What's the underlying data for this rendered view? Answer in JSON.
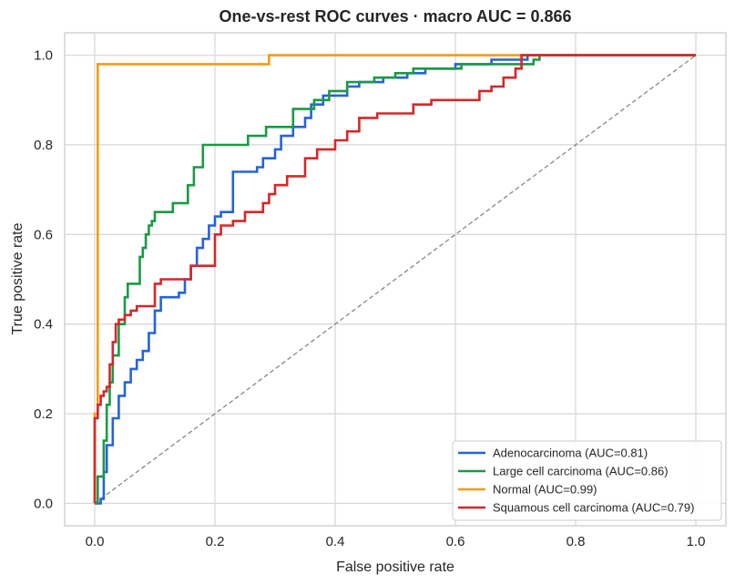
{
  "chart_data": {
    "type": "line",
    "title": "One-vs-rest ROC curves  ·  macro AUC = 0.866",
    "xlabel": "False positive rate",
    "ylabel": "True positive rate",
    "xlim": [
      -0.05,
      1.05
    ],
    "ylim": [
      -0.05,
      1.05
    ],
    "xticks": [
      "0.0",
      "0.2",
      "0.4",
      "0.6",
      "0.8",
      "1.0"
    ],
    "yticks": [
      "0.0",
      "0.2",
      "0.4",
      "0.6",
      "0.8",
      "1.0"
    ],
    "grid": true,
    "legend_position": "lower-right",
    "chance_line": {
      "x": [
        0,
        1
      ],
      "y": [
        0,
        1
      ],
      "color": "#888888",
      "style": "dashed"
    },
    "series": [
      {
        "name": "Adenocarcinoma (AUC=0.81)",
        "color": "#2563d9",
        "x": [
          0,
          0.01,
          0.01,
          0.015,
          0.015,
          0.02,
          0.02,
          0.03,
          0.03,
          0.04,
          0.04,
          0.05,
          0.05,
          0.06,
          0.06,
          0.07,
          0.07,
          0.08,
          0.08,
          0.09,
          0.09,
          0.1,
          0.1,
          0.11,
          0.11,
          0.14,
          0.14,
          0.15,
          0.15,
          0.16,
          0.16,
          0.17,
          0.17,
          0.18,
          0.18,
          0.19,
          0.19,
          0.2,
          0.2,
          0.21,
          0.21,
          0.23,
          0.23,
          0.27,
          0.27,
          0.28,
          0.28,
          0.3,
          0.3,
          0.31,
          0.31,
          0.33,
          0.33,
          0.35,
          0.35,
          0.36,
          0.36,
          0.38,
          0.38,
          0.42,
          0.42,
          0.44,
          0.44,
          0.48,
          0.48,
          0.52,
          0.52,
          0.55,
          0.55,
          0.6,
          0.6,
          0.66,
          0.66,
          0.72,
          0.72,
          1.0
        ],
        "y": [
          0,
          0,
          0.01,
          0.01,
          0.07,
          0.07,
          0.13,
          0.13,
          0.19,
          0.19,
          0.24,
          0.24,
          0.27,
          0.27,
          0.3,
          0.3,
          0.32,
          0.32,
          0.34,
          0.34,
          0.38,
          0.38,
          0.43,
          0.43,
          0.46,
          0.46,
          0.47,
          0.47,
          0.5,
          0.5,
          0.53,
          0.53,
          0.57,
          0.57,
          0.59,
          0.59,
          0.62,
          0.62,
          0.64,
          0.64,
          0.65,
          0.65,
          0.74,
          0.74,
          0.75,
          0.75,
          0.77,
          0.77,
          0.79,
          0.79,
          0.82,
          0.82,
          0.84,
          0.84,
          0.86,
          0.86,
          0.89,
          0.89,
          0.91,
          0.91,
          0.93,
          0.93,
          0.94,
          0.94,
          0.95,
          0.95,
          0.96,
          0.96,
          0.97,
          0.97,
          0.98,
          0.98,
          0.99,
          0.99,
          1.0,
          1.0
        ]
      },
      {
        "name": "Large cell carcinoma (AUC=0.86)",
        "color": "#1a9a45",
        "x": [
          0,
          0.005,
          0.005,
          0.015,
          0.015,
          0.02,
          0.02,
          0.025,
          0.025,
          0.03,
          0.03,
          0.04,
          0.04,
          0.05,
          0.05,
          0.055,
          0.055,
          0.075,
          0.075,
          0.08,
          0.08,
          0.085,
          0.085,
          0.09,
          0.09,
          0.095,
          0.095,
          0.1,
          0.1,
          0.13,
          0.13,
          0.155,
          0.155,
          0.165,
          0.165,
          0.18,
          0.18,
          0.255,
          0.255,
          0.285,
          0.285,
          0.33,
          0.33,
          0.365,
          0.365,
          0.39,
          0.39,
          0.42,
          0.42,
          0.465,
          0.465,
          0.5,
          0.5,
          0.53,
          0.53,
          0.61,
          0.61,
          0.73,
          0.73,
          0.74,
          0.74,
          1.0
        ],
        "y": [
          0,
          0,
          0.06,
          0.06,
          0.14,
          0.14,
          0.22,
          0.22,
          0.27,
          0.27,
          0.33,
          0.33,
          0.4,
          0.4,
          0.46,
          0.46,
          0.49,
          0.49,
          0.55,
          0.55,
          0.57,
          0.57,
          0.6,
          0.6,
          0.62,
          0.62,
          0.63,
          0.63,
          0.65,
          0.65,
          0.67,
          0.67,
          0.71,
          0.71,
          0.75,
          0.75,
          0.8,
          0.8,
          0.82,
          0.82,
          0.84,
          0.84,
          0.88,
          0.88,
          0.9,
          0.9,
          0.92,
          0.92,
          0.94,
          0.94,
          0.95,
          0.95,
          0.96,
          0.96,
          0.97,
          0.97,
          0.98,
          0.98,
          0.99,
          0.99,
          1.0,
          1.0
        ]
      },
      {
        "name": "Normal (AUC=0.99)",
        "color": "#f39c12",
        "x": [
          0,
          0.0,
          0.005,
          0.005,
          0.29,
          0.29,
          1.0
        ],
        "y": [
          0,
          0.2,
          0.2,
          0.98,
          0.98,
          1.0,
          1.0
        ]
      },
      {
        "name": "Squamous cell carcinoma (AUC=0.79)",
        "color": "#d62728",
        "x": [
          0,
          0.0,
          0.005,
          0.005,
          0.01,
          0.01,
          0.015,
          0.015,
          0.02,
          0.02,
          0.025,
          0.025,
          0.03,
          0.03,
          0.035,
          0.035,
          0.04,
          0.04,
          0.05,
          0.05,
          0.06,
          0.06,
          0.07,
          0.07,
          0.1,
          0.1,
          0.11,
          0.11,
          0.16,
          0.16,
          0.2,
          0.2,
          0.21,
          0.21,
          0.23,
          0.23,
          0.25,
          0.25,
          0.28,
          0.28,
          0.29,
          0.29,
          0.3,
          0.3,
          0.32,
          0.32,
          0.35,
          0.35,
          0.37,
          0.37,
          0.4,
          0.4,
          0.42,
          0.42,
          0.44,
          0.44,
          0.47,
          0.47,
          0.53,
          0.53,
          0.56,
          0.56,
          0.64,
          0.64,
          0.66,
          0.66,
          0.68,
          0.68,
          0.7,
          0.7,
          0.71,
          0.71,
          1.0
        ],
        "y": [
          0,
          0.19,
          0.19,
          0.22,
          0.22,
          0.24,
          0.24,
          0.25,
          0.25,
          0.26,
          0.26,
          0.31,
          0.31,
          0.36,
          0.36,
          0.4,
          0.4,
          0.41,
          0.41,
          0.42,
          0.42,
          0.43,
          0.43,
          0.44,
          0.44,
          0.49,
          0.49,
          0.5,
          0.5,
          0.53,
          0.53,
          0.6,
          0.6,
          0.62,
          0.62,
          0.63,
          0.63,
          0.65,
          0.65,
          0.67,
          0.67,
          0.69,
          0.69,
          0.71,
          0.71,
          0.73,
          0.73,
          0.77,
          0.77,
          0.79,
          0.79,
          0.81,
          0.81,
          0.83,
          0.83,
          0.86,
          0.86,
          0.87,
          0.87,
          0.89,
          0.89,
          0.9,
          0.9,
          0.92,
          0.92,
          0.93,
          0.93,
          0.95,
          0.95,
          0.97,
          0.97,
          1.0,
          1.0
        ]
      }
    ]
  }
}
